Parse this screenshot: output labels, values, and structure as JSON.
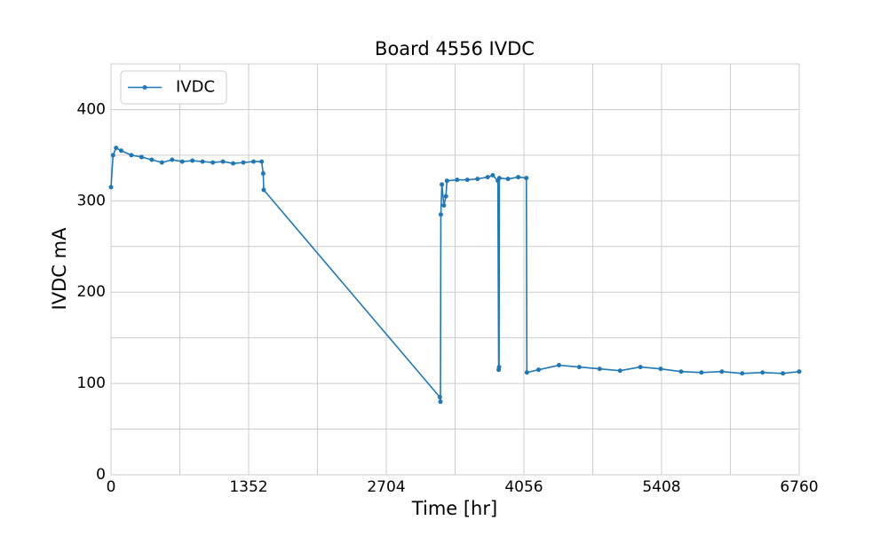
{
  "chart_data": {
    "type": "line",
    "title": "Board 4556 IVDC",
    "xlabel": "Time [hr]",
    "ylabel": "IVDC mA",
    "x": [
      0,
      20,
      50,
      100,
      200,
      300,
      400,
      500,
      600,
      700,
      800,
      900,
      1000,
      1100,
      1200,
      1300,
      1400,
      1480,
      1495,
      1500,
      3230,
      3236,
      3240,
      3250,
      3270,
      3290,
      3300,
      3400,
      3500,
      3600,
      3700,
      3750,
      3800,
      3808,
      3812,
      3815,
      3900,
      4000,
      4080,
      4085,
      4200,
      4400,
      4600,
      4800,
      5000,
      5200,
      5400,
      5600,
      5800,
      6000,
      6200,
      6400,
      6600,
      6760
    ],
    "series": [
      {
        "name": "IVDC",
        "color": "#1f77b4",
        "values": [
          315,
          350,
          358,
          355,
          350,
          348,
          345,
          342,
          345,
          343,
          344,
          343,
          342,
          343,
          341,
          342,
          343,
          343,
          330,
          312,
          85,
          80,
          285,
          318,
          295,
          305,
          322,
          323,
          323,
          324,
          326,
          328,
          322,
          115,
          118,
          325,
          324,
          326,
          325,
          112,
          115,
          120,
          118,
          116,
          114,
          118,
          116,
          113,
          112,
          113,
          111,
          112,
          111,
          113
        ]
      }
    ],
    "xlim": [
      0,
      6760
    ],
    "xticks": [
      0,
      1352,
      2704,
      4056,
      5408,
      6760
    ],
    "x_minor_grid": [
      676,
      2028,
      3380,
      4732,
      6084
    ],
    "ylim": [
      0,
      450
    ],
    "yticks": [
      0,
      100,
      200,
      300,
      400
    ],
    "y_minor_grid": [
      50,
      150,
      250,
      350
    ],
    "grid": true,
    "legend": "upper left"
  }
}
